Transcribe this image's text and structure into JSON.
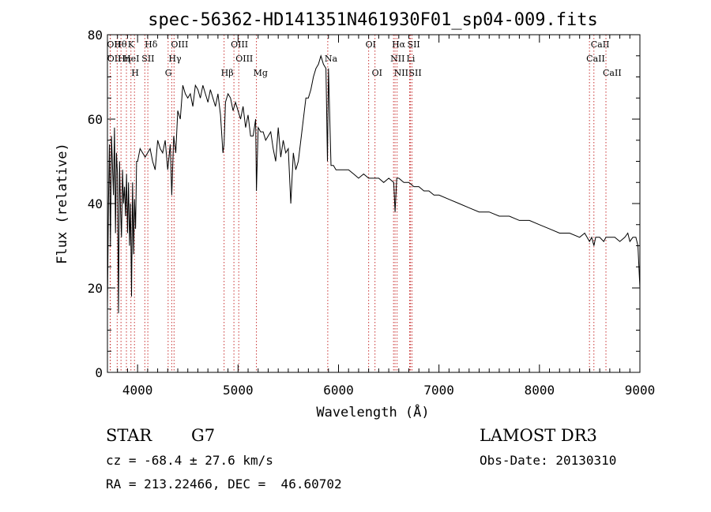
{
  "chart_data": {
    "type": "line",
    "title": "spec-56362-HD141351N461930F01_sp04-009.fits",
    "xlabel": "Wavelength (Å)",
    "ylabel": "Flux (relative)",
    "xlim": [
      3700,
      9000
    ],
    "ylim": [
      0,
      80
    ],
    "xticks": [
      4000,
      5000,
      6000,
      7000,
      8000,
      9000
    ],
    "yticks": [
      0,
      20,
      40,
      60,
      80
    ],
    "series": [
      {
        "name": "flux",
        "x": [
          3700,
          3710,
          3720,
          3730,
          3740,
          3750,
          3760,
          3770,
          3780,
          3790,
          3800,
          3810,
          3820,
          3830,
          3840,
          3850,
          3860,
          3870,
          3880,
          3890,
          3900,
          3910,
          3920,
          3930,
          3940,
          3950,
          3960,
          3970,
          3980,
          3990,
          4000,
          4025,
          4050,
          4075,
          4100,
          4125,
          4150,
          4175,
          4200,
          4225,
          4250,
          4275,
          4300,
          4325,
          4340,
          4360,
          4380,
          4400,
          4425,
          4450,
          4475,
          4500,
          4525,
          4550,
          4575,
          4600,
          4625,
          4650,
          4675,
          4700,
          4725,
          4750,
          4775,
          4800,
          4825,
          4850,
          4861,
          4875,
          4900,
          4925,
          4950,
          4975,
          5000,
          5025,
          5050,
          5075,
          5100,
          5125,
          5150,
          5175,
          5183,
          5200,
          5225,
          5250,
          5275,
          5300,
          5325,
          5350,
          5375,
          5400,
          5425,
          5450,
          5475,
          5500,
          5525,
          5550,
          5575,
          5600,
          5625,
          5650,
          5675,
          5700,
          5725,
          5750,
          5775,
          5800,
          5825,
          5850,
          5875,
          5890,
          5900,
          5925,
          5950,
          5975,
          6000,
          6050,
          6100,
          6150,
          6200,
          6250,
          6300,
          6350,
          6400,
          6450,
          6500,
          6550,
          6563,
          6580,
          6600,
          6650,
          6700,
          6750,
          6800,
          6850,
          6900,
          6950,
          7000,
          7100,
          7200,
          7300,
          7400,
          7500,
          7600,
          7700,
          7800,
          7900,
          8000,
          8100,
          8200,
          8300,
          8400,
          8450,
          8498,
          8520,
          8542,
          8560,
          8600,
          8640,
          8662,
          8700,
          8750,
          8800,
          8850,
          8880,
          8900,
          8930,
          8960,
          8980,
          9000
        ],
        "values": [
          15,
          40,
          54,
          30,
          56,
          49,
          42,
          58,
          33,
          52,
          47,
          14,
          50,
          39,
          32,
          48,
          40,
          44,
          37,
          47,
          33,
          45,
          30,
          40,
          18,
          45,
          28,
          41,
          34,
          50,
          50,
          53,
          52,
          51,
          52,
          53,
          50,
          48,
          55,
          53,
          52,
          55,
          48,
          54,
          42,
          56,
          52,
          62,
          60,
          68,
          66,
          65,
          66,
          63,
          68,
          67,
          65,
          68,
          66,
          64,
          67,
          65,
          63,
          66,
          61,
          52,
          54,
          64,
          66,
          65,
          62,
          64,
          62,
          60,
          63,
          58,
          61,
          56,
          56,
          60,
          43,
          58,
          57,
          57,
          55,
          56,
          57,
          53,
          50,
          58,
          51,
          55,
          52,
          53,
          40,
          52,
          48,
          50,
          55,
          60,
          65,
          65,
          67,
          70,
          72,
          73,
          75,
          73,
          72,
          50,
          72,
          49,
          49,
          48,
          48,
          48,
          48,
          47,
          46,
          47,
          46,
          46,
          46,
          45,
          46,
          45,
          38,
          46,
          46,
          45,
          45,
          44,
          44,
          43,
          43,
          42,
          42,
          41,
          40,
          39,
          38,
          38,
          37,
          37,
          36,
          36,
          35,
          34,
          33,
          33,
          32,
          33,
          31,
          32,
          30,
          32,
          32,
          31,
          32,
          32,
          32,
          31,
          32,
          33,
          31,
          32,
          32,
          30,
          20
        ]
      }
    ],
    "lines": [
      {
        "name": "Hθ",
        "wl": 3797
      },
      {
        "name": "K",
        "wl": 3934
      },
      {
        "name": "Hδ",
        "wl": 4102
      },
      {
        "name": "OIII",
        "wl": 4363
      },
      {
        "name": "OIII",
        "wl": 4959
      },
      {
        "name": "OI",
        "wl": 6300
      },
      {
        "name": "Hα",
        "wl": 6563
      },
      {
        "name": "SII",
        "wl": 6716
      },
      {
        "name": "CaII",
        "wl": 8542
      },
      {
        "name": "OII",
        "wl": 3727
      },
      {
        "name": "HeI",
        "wl": 3889
      },
      {
        "name": "SII",
        "wl": 4072
      },
      {
        "name": "Hγ",
        "wl": 4340
      },
      {
        "name": "OIII",
        "wl": 5007
      },
      {
        "name": "Na",
        "wl": 5893
      },
      {
        "name": "NII",
        "wl": 6548
      },
      {
        "name": "Li",
        "wl": 6708
      },
      {
        "name": "CaII",
        "wl": 8498
      },
      {
        "name": "OII",
        "wl": 3729
      },
      {
        "name": "Hη",
        "wl": 3835
      },
      {
        "name": "H",
        "wl": 3969
      },
      {
        "name": "G",
        "wl": 4304
      },
      {
        "name": "Hβ",
        "wl": 4861
      },
      {
        "name": "Mg",
        "wl": 5183
      },
      {
        "name": "OI",
        "wl": 6363
      },
      {
        "name": "NII",
        "wl": 6583
      },
      {
        "name": "SII",
        "wl": 6731
      },
      {
        "name": "CaII",
        "wl": 8662
      }
    ]
  },
  "info": {
    "object_class": "STAR",
    "subclass": "G7",
    "redshift": "cz = -68.4 ± 27.6 km/s",
    "coords": "RA = 213.22466, DEC =  46.60702",
    "survey": "LAMOST DR3",
    "obs_date": "Obs-Date: 20130310"
  },
  "colors": {
    "axis": "#000000",
    "spectrum": "#000000",
    "line_marker": "#c83232"
  }
}
